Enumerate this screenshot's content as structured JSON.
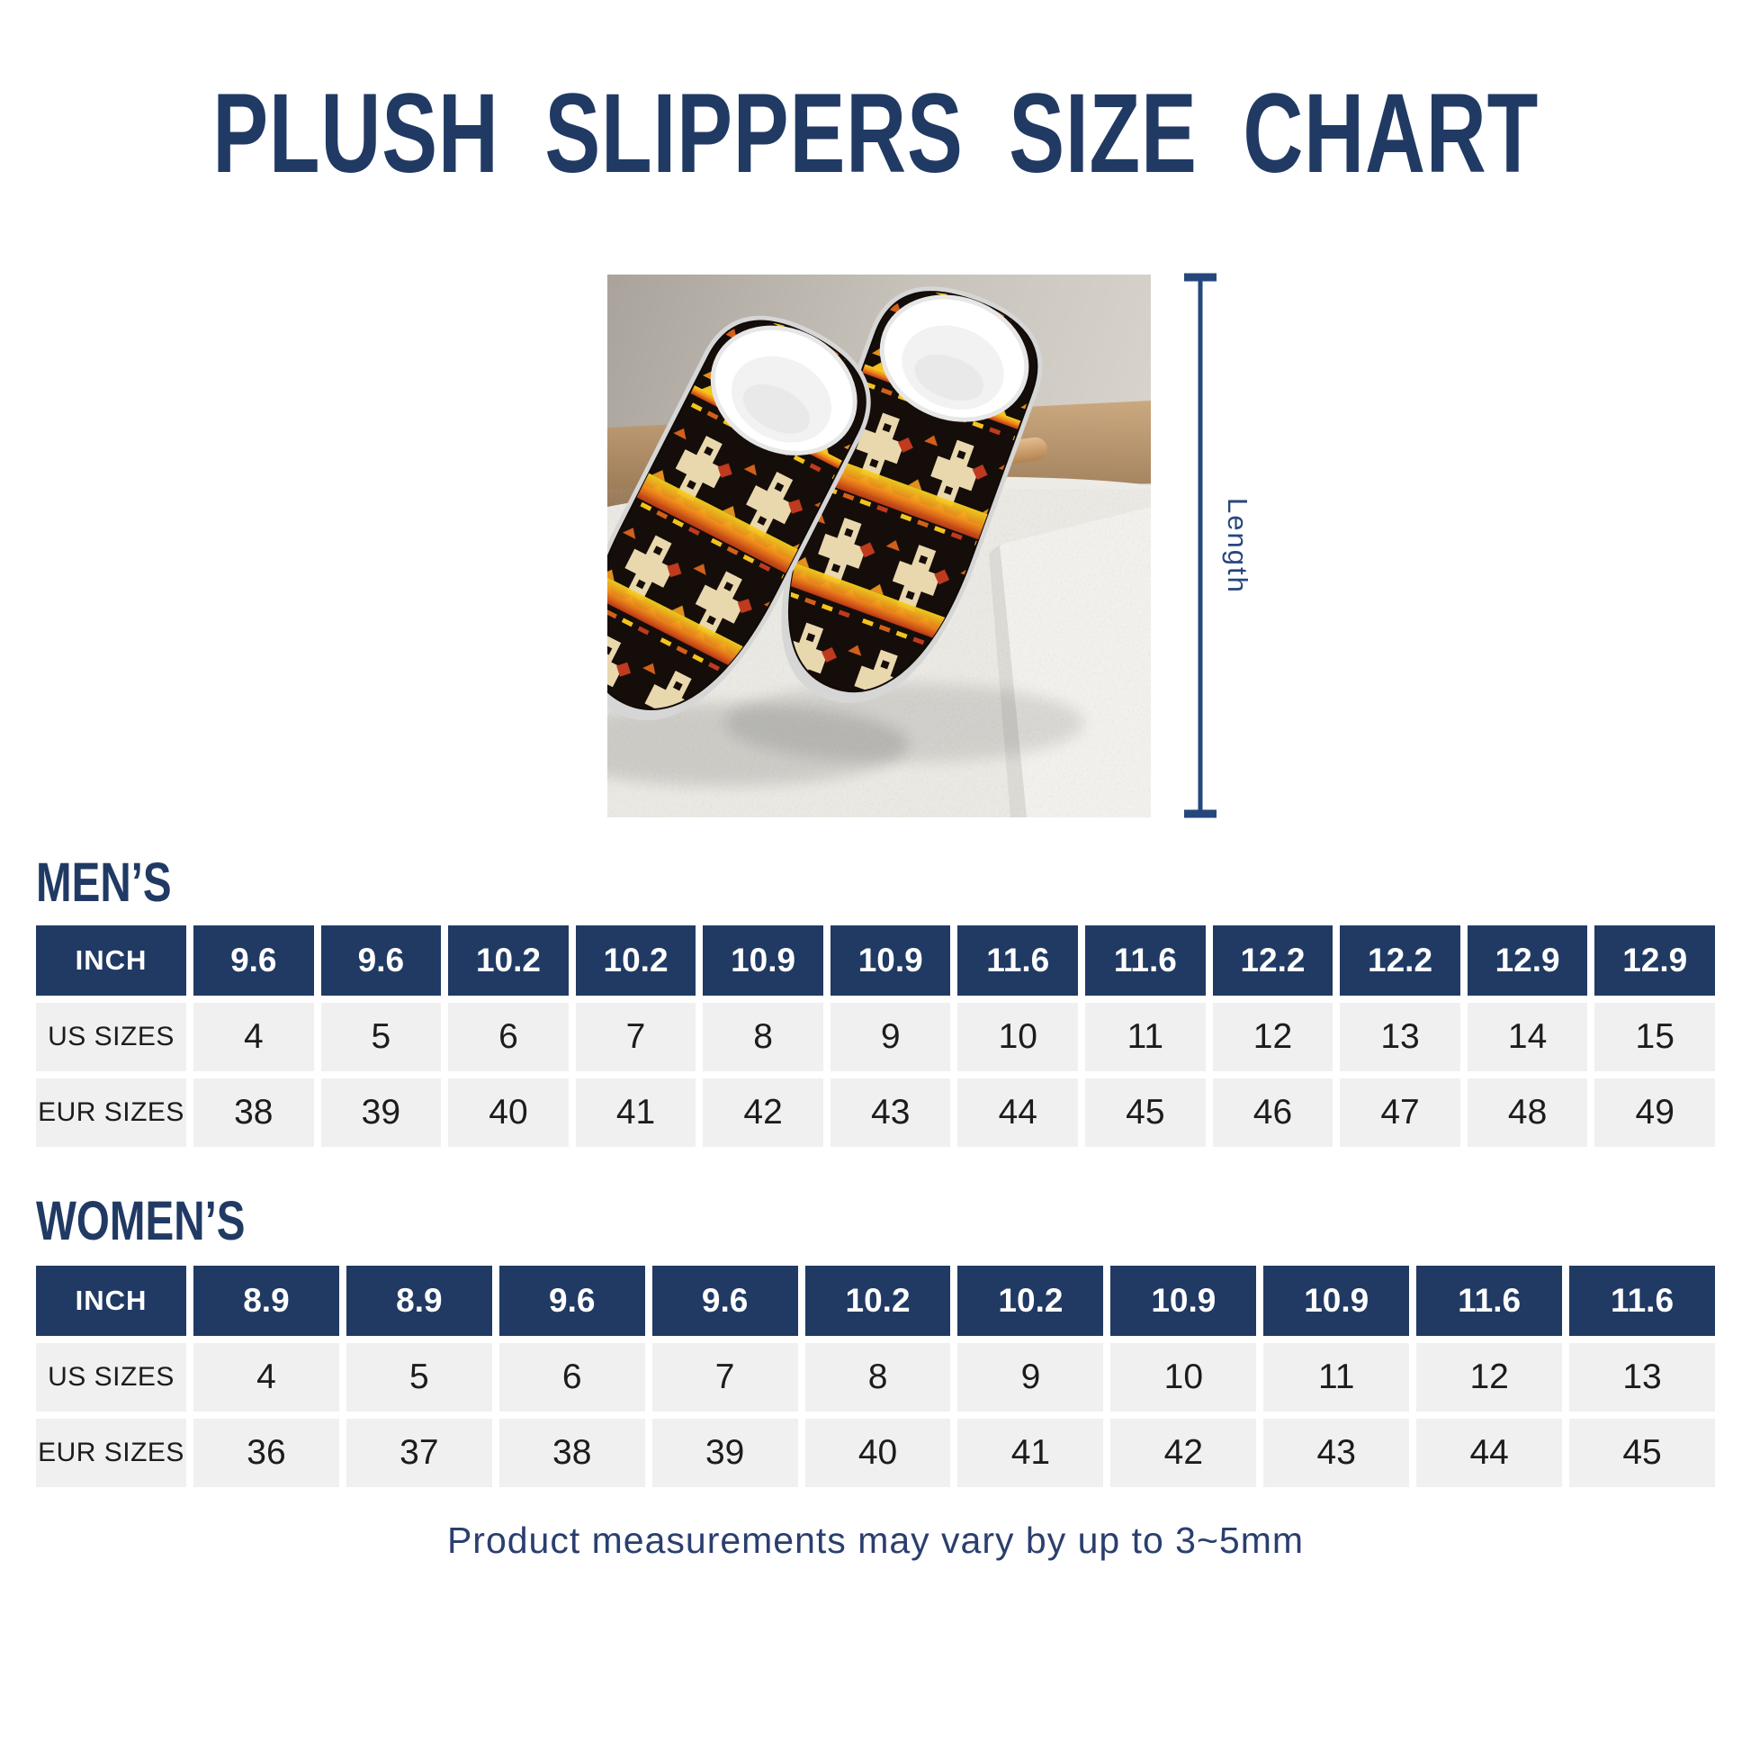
{
  "page": {
    "title": "PLUSH SLIPPERS SIZE CHART",
    "footnote": "Product measurements may vary by up to 3~5mm"
  },
  "colors": {
    "navy_header": "#203a64",
    "bracket_navy": "#27477c",
    "cell_background": "#f0f0f0",
    "cell_text": "#1c1c1c",
    "header_text": "#ffffff"
  },
  "product": {
    "length_label": "Length",
    "photo_description": "pair of black plush slippers with cream, orange and yellow tribal pattern, white fleece lining and gray soles on a white rug"
  },
  "mens": {
    "heading": "MEN’S",
    "rows": [
      {
        "type": "header",
        "label": "INCH",
        "values": [
          "9.6",
          "9.6",
          "10.2",
          "10.2",
          "10.9",
          "10.9",
          "11.6",
          "11.6",
          "12.2",
          "12.2",
          "12.9",
          "12.9"
        ]
      },
      {
        "type": "body",
        "label": "US SIZES",
        "values": [
          "4",
          "5",
          "6",
          "7",
          "8",
          "9",
          "10",
          "11",
          "12",
          "13",
          "14",
          "15"
        ]
      },
      {
        "type": "body",
        "label": "EUR SIZES",
        "values": [
          "38",
          "39",
          "40",
          "41",
          "42",
          "43",
          "44",
          "45",
          "46",
          "47",
          "48",
          "49"
        ]
      }
    ]
  },
  "womens": {
    "heading": "WOMEN’S",
    "rows": [
      {
        "type": "header",
        "label": "INCH",
        "values": [
          "8.9",
          "8.9",
          "9.6",
          "9.6",
          "10.2",
          "10.2",
          "10.9",
          "10.9",
          "11.6",
          "11.6"
        ]
      },
      {
        "type": "body",
        "label": "US SIZES",
        "values": [
          "4",
          "5",
          "6",
          "7",
          "8",
          "9",
          "10",
          "11",
          "12",
          "13"
        ]
      },
      {
        "type": "body",
        "label": "EUR SIZES",
        "values": [
          "36",
          "37",
          "38",
          "39",
          "40",
          "41",
          "42",
          "43",
          "44",
          "45"
        ]
      }
    ]
  }
}
